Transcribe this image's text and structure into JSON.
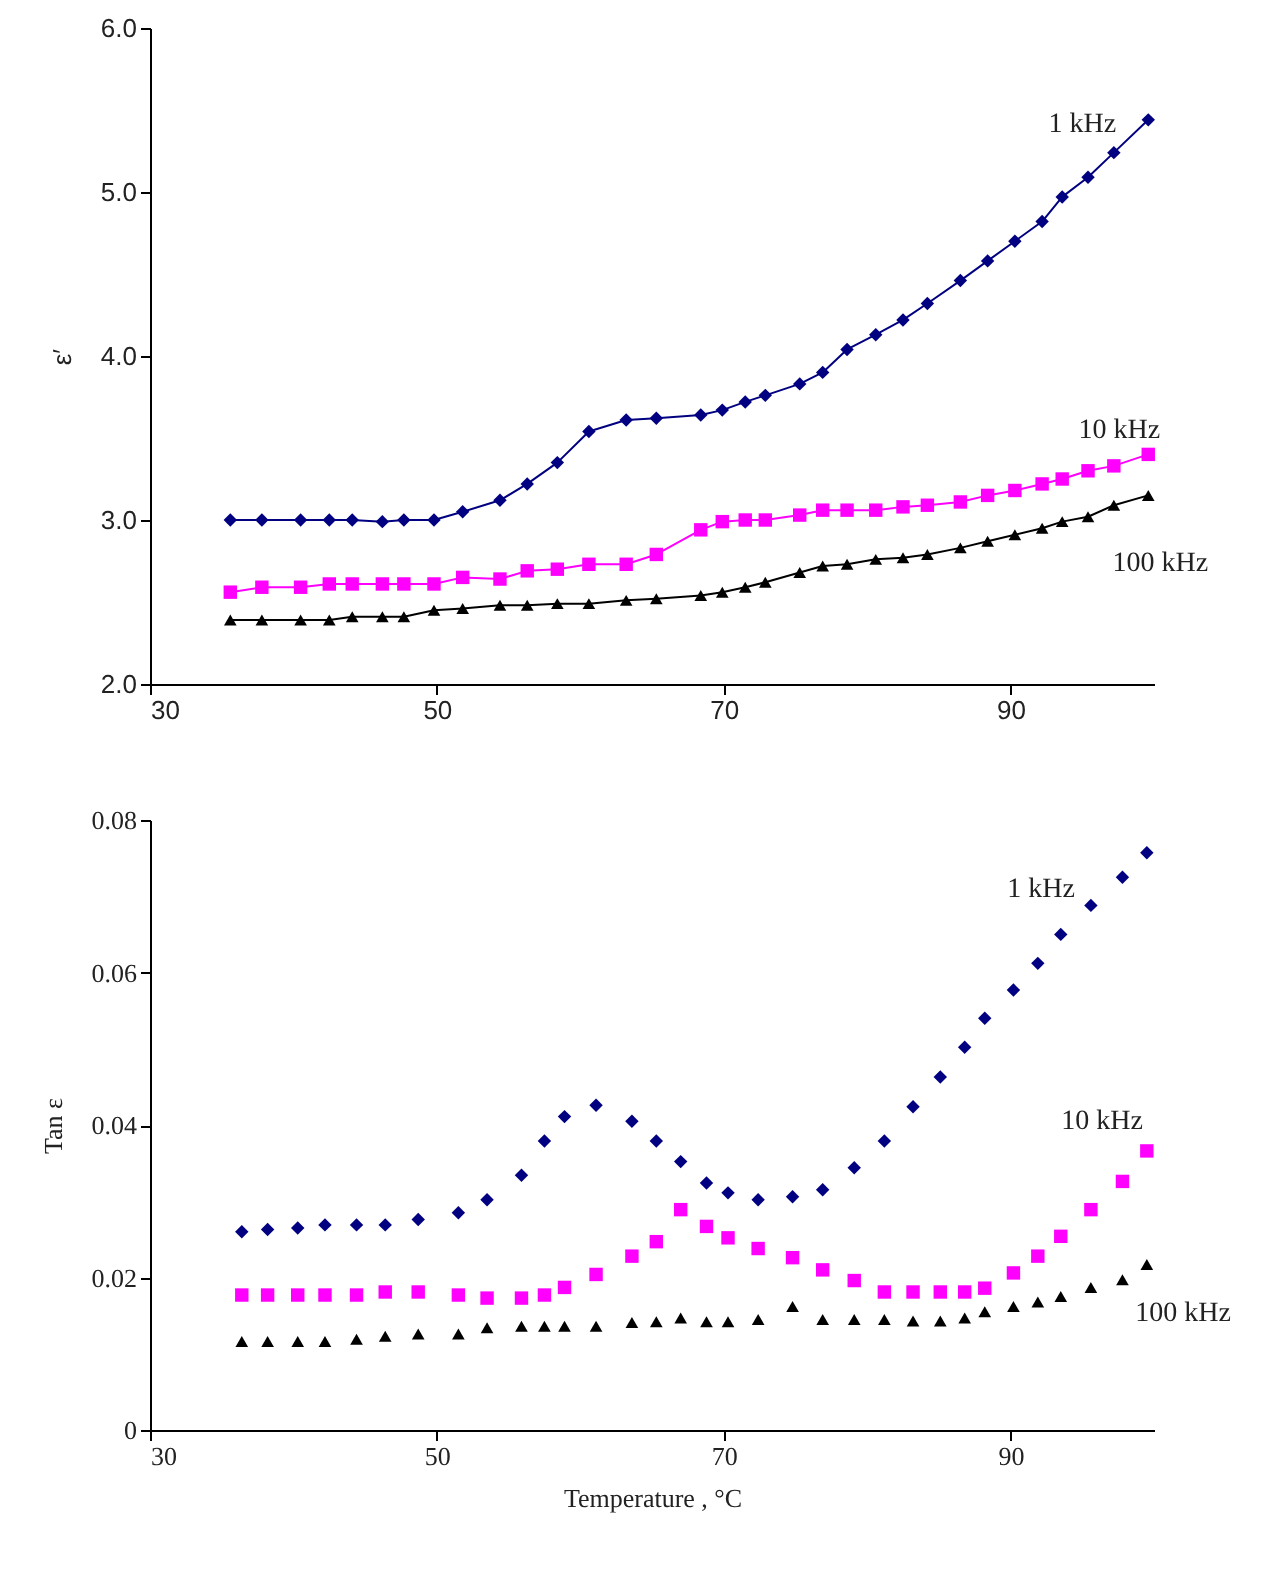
{
  "chart_data": [
    {
      "type": "line",
      "ylabel": "ε′",
      "xlim": [
        30,
        100
      ],
      "xticks": [
        30,
        50,
        70,
        90
      ],
      "ylim": [
        2,
        6
      ],
      "yticks": [
        {
          "value": 2,
          "label": "2.0"
        },
        {
          "value": 3,
          "label": "3.0"
        },
        {
          "value": 4,
          "label": "4.0"
        },
        {
          "value": 5,
          "label": "5.0"
        },
        {
          "value": 6,
          "label": "6.0"
        }
      ],
      "x": [
        35.6,
        37.8,
        40.5,
        42.5,
        44.1,
        46.2,
        47.7,
        49.8,
        51.8,
        54.4,
        56.3,
        58.4,
        60.6,
        63.2,
        65.3,
        68.4,
        69.9,
        71.5,
        72.9,
        75.3,
        76.9,
        78.6,
        80.6,
        82.5,
        84.2,
        86.5,
        88.4,
        90.3,
        92.2,
        93.6,
        95.4,
        97.2,
        99.6
      ],
      "series": [
        {
          "name": "1 kHz",
          "color": "#000080",
          "marker": "diamond",
          "values": [
            3.0,
            3.0,
            3.0,
            3.0,
            3.0,
            2.99,
            3.0,
            3.0,
            3.05,
            3.12,
            3.22,
            3.35,
            3.54,
            3.61,
            3.62,
            3.64,
            3.67,
            3.72,
            3.76,
            3.83,
            3.9,
            4.04,
            4.13,
            4.22,
            4.32,
            4.46,
            4.58,
            4.7,
            4.82,
            4.97,
            5.09,
            5.24,
            5.44
          ]
        },
        {
          "name": "10 kHz",
          "color": "#ff00ff",
          "marker": "square",
          "values": [
            2.56,
            2.59,
            2.59,
            2.61,
            2.61,
            2.61,
            2.61,
            2.61,
            2.65,
            2.64,
            2.69,
            2.7,
            2.73,
            2.73,
            2.79,
            2.94,
            2.99,
            3.0,
            3.0,
            3.03,
            3.06,
            3.06,
            3.06,
            3.08,
            3.09,
            3.11,
            3.15,
            3.18,
            3.22,
            3.25,
            3.3,
            3.33,
            3.4
          ]
        },
        {
          "name": "100 kHz",
          "color": "#000000",
          "marker": "triangle",
          "values": [
            2.39,
            2.39,
            2.39,
            2.39,
            2.41,
            2.41,
            2.41,
            2.45,
            2.46,
            2.48,
            2.48,
            2.49,
            2.49,
            2.51,
            2.52,
            2.54,
            2.56,
            2.59,
            2.62,
            2.68,
            2.72,
            2.73,
            2.76,
            2.77,
            2.79,
            2.83,
            2.87,
            2.91,
            2.95,
            2.99,
            3.02,
            3.09,
            3.15
          ]
        }
      ]
    },
    {
      "type": "scatter",
      "xlabel": "Temperature , °C",
      "ylabel": "Tan ε",
      "xlim": [
        30,
        100
      ],
      "xticks": [
        30,
        50,
        70,
        90
      ],
      "ylim": [
        0,
        0.08
      ],
      "yticks": [
        0,
        0.02,
        0.04,
        0.06,
        0.08
      ],
      "x": [
        36.4,
        38.2,
        40.3,
        42.2,
        44.4,
        46.4,
        48.7,
        51.5,
        53.5,
        55.9,
        57.5,
        58.9,
        61.1,
        63.6,
        65.3,
        67.0,
        68.8,
        70.3,
        72.4,
        74.8,
        76.9,
        79.1,
        81.2,
        83.2,
        85.1,
        86.8,
        88.2,
        90.2,
        91.9,
        93.5,
        95.6,
        97.8,
        99.5
      ],
      "series": [
        {
          "name": "1 kHz",
          "color": "#000080",
          "marker": "diamond",
          "values": [
            0.026,
            0.0263,
            0.0265,
            0.0269,
            0.0269,
            0.0269,
            0.0276,
            0.0285,
            0.0302,
            0.0334,
            0.0379,
            0.0411,
            0.0426,
            0.0405,
            0.0379,
            0.0352,
            0.0324,
            0.0311,
            0.0302,
            0.0306,
            0.0315,
            0.0344,
            0.0379,
            0.0424,
            0.0463,
            0.0502,
            0.054,
            0.0577,
            0.0612,
            0.065,
            0.0688,
            0.0725,
            0.0757
          ]
        },
        {
          "name": "10 kHz",
          "color": "#ff00ff",
          "marker": "square",
          "values": [
            0.0177,
            0.0177,
            0.0177,
            0.0177,
            0.0177,
            0.0181,
            0.0181,
            0.0177,
            0.0173,
            0.0173,
            0.0177,
            0.0187,
            0.0204,
            0.0228,
            0.0247,
            0.0289,
            0.0267,
            0.0252,
            0.0238,
            0.0226,
            0.021,
            0.0196,
            0.0181,
            0.0181,
            0.0181,
            0.0181,
            0.0186,
            0.0206,
            0.0228,
            0.0254,
            0.0289,
            0.0326,
            0.0366
          ]
        },
        {
          "name": "100 kHz",
          "color": "#000000",
          "marker": "triangle",
          "values": [
            0.0116,
            0.0116,
            0.0116,
            0.0116,
            0.0119,
            0.0123,
            0.0126,
            0.0126,
            0.0134,
            0.0136,
            0.0136,
            0.0136,
            0.0136,
            0.0141,
            0.0142,
            0.0147,
            0.0142,
            0.0142,
            0.0145,
            0.0162,
            0.0145,
            0.0145,
            0.0145,
            0.0143,
            0.0143,
            0.0147,
            0.0155,
            0.0162,
            0.0168,
            0.0175,
            0.0187,
            0.0197,
            0.0217
          ]
        }
      ]
    }
  ]
}
